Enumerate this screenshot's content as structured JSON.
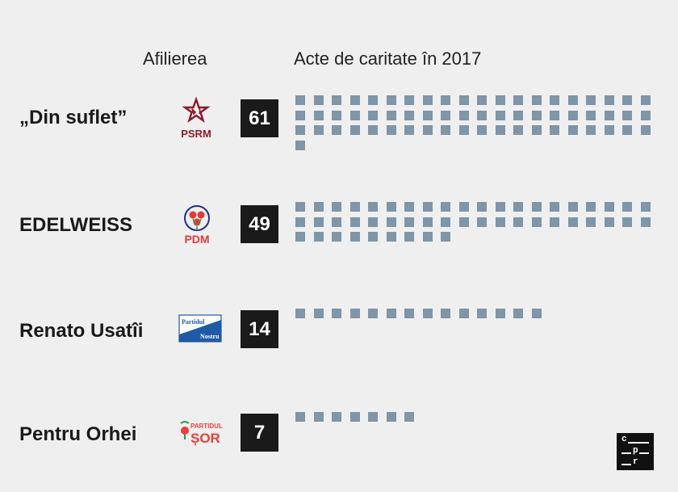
{
  "headers": {
    "affiliation": "Afilierea",
    "acts": "Acte de caritate în 2017"
  },
  "colors": {
    "square": "#7f95a8",
    "count_box": "#1a1a1a",
    "psrm": "#8b1a2b",
    "pdm_blue": "#1c2f8c",
    "pdm_red": "#e23a3a",
    "sor_red": "#e8413a",
    "sor_green": "#2e9b4a",
    "nostru_blue": "#1f5aa6"
  },
  "rows": [
    {
      "org": "„Din suflet”",
      "party": "PSRM",
      "logo_text": "PSRM",
      "count": "61"
    },
    {
      "org": "EDELWEISS",
      "party": "PDM",
      "logo_text": "PDM",
      "count": "49"
    },
    {
      "org": "Renato Usatîi",
      "party": "Partidul Nostru",
      "logo_text_1": "Partidul",
      "logo_text_2": "Nostru",
      "count": "14"
    },
    {
      "org": "Pentru Orhei",
      "party": "Partidul Șor",
      "logo_text_1": "PARTIDUL",
      "logo_text_2": "ȘOR",
      "count": "7"
    }
  ],
  "chart_data": {
    "type": "bar",
    "categories": [
      "„Din suflet”",
      "EDELWEISS",
      "Renato Usatîi",
      "Pentru Orhei"
    ],
    "values": [
      61,
      49,
      14,
      7
    ],
    "affiliations": [
      "PSRM",
      "PDM",
      "Partidul Nostru",
      "Partidul Șor"
    ],
    "title": "Acte de caritate în 2017",
    "xlabel": "",
    "ylabel": "Afilierea",
    "unit_shape": "square",
    "units_per_row": 20
  },
  "brand": {
    "line1": "c",
    "line2": "p",
    "line3": "r"
  }
}
